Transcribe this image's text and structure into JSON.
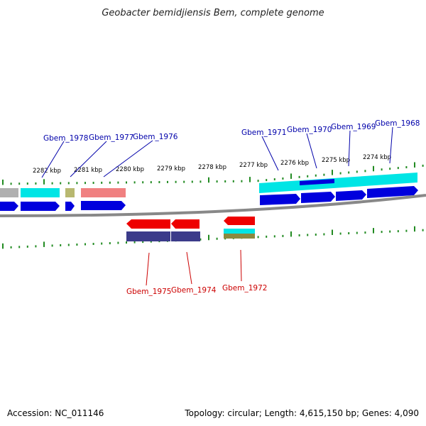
{
  "title": "Geobacter bemidjiensis Bem, complete genome",
  "footer": {
    "accession": "Accession: NC_011146",
    "summary": "Topology: circular; Length: 4,615,150 bp; Genes: 4,090"
  },
  "colors": {
    "backbone": "#888888",
    "tick": "#228b22",
    "cds": "#0000dd",
    "cds_reverse": "#ee0000",
    "cyan_track": "#00e5e5",
    "navy_track": "#3b3b8a",
    "pink_track": "#f08080",
    "olive_track": "#b8b870",
    "gray_track": "#b0b0b0",
    "label_forward": "#0000aa",
    "label_reverse": "#cc0000"
  },
  "scale_labels": [
    "2282 kbp",
    "2281 kbp",
    "2280 kbp",
    "2279 kbp",
    "2278 kbp",
    "2277 kbp",
    "2276 kbp",
    "2275 kbp",
    "2274 kbp"
  ],
  "genes_forward": [
    "Gbem_1978",
    "Gbem_1977",
    "Gbem_1976",
    "Gbem_1971",
    "Gbem_1970",
    "Gbem_1969",
    "Gbem_1968"
  ],
  "genes_reverse": [
    "Gbem_1975",
    "Gbem_1974",
    "Gbem_1972"
  ]
}
